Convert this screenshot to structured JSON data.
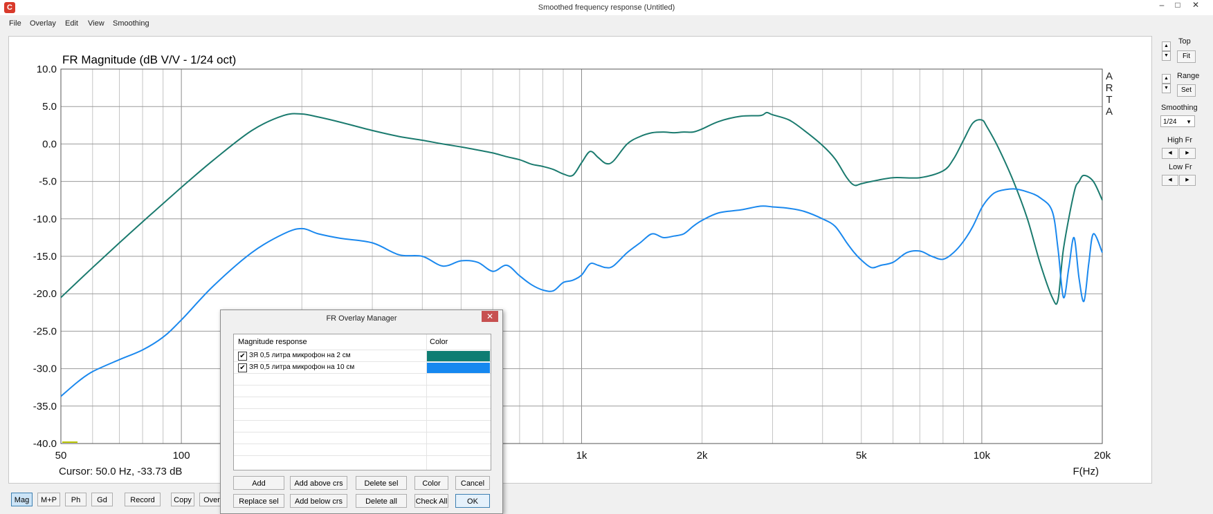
{
  "window": {
    "title": "Smoothed frequency response (Untitled)",
    "icon_name": "arta-app-icon",
    "controls": [
      "–",
      "□",
      "✕"
    ]
  },
  "menu": [
    "File",
    "Overlay",
    "Edit",
    "View",
    "Smoothing"
  ],
  "chart_data": {
    "type": "line",
    "title": "FR Magnitude (dB V/V - 1/24 oct)",
    "brand": [
      "A",
      "R",
      "T",
      "A"
    ],
    "xlabel": "F(Hz)",
    "x_scale": "log",
    "xlim": [
      50,
      20000
    ],
    "x_ticks": [
      50,
      100,
      1000,
      2000,
      5000,
      10000,
      20000
    ],
    "x_tick_labels": [
      "50",
      "100",
      "1k",
      "2k",
      "5k",
      "10k",
      "20k"
    ],
    "ylim": [
      -40,
      10
    ],
    "y_ticks": [
      10,
      5,
      0,
      -5,
      -10,
      -15,
      -20,
      -25,
      -30,
      -35,
      -40
    ],
    "y_tick_labels": [
      "10.0",
      "5.0",
      "0.0",
      "-5.0",
      "-10.0",
      "-15.0",
      "-20.0",
      "-25.0",
      "-30.0",
      "-35.0",
      "-40.0"
    ],
    "grid": true,
    "cursor_text": "Cursor: 50.0 Hz, -33.73 dB",
    "series": [
      {
        "name": "ЗЯ 0,5 литра микрофон на 2 см",
        "color": "#1a7a6e",
        "x": [
          50,
          60,
          70,
          80,
          100,
          120,
          150,
          180,
          200,
          220,
          250,
          300,
          350,
          400,
          450,
          500,
          550,
          600,
          650,
          700,
          750,
          800,
          850,
          900,
          950,
          1000,
          1050,
          1100,
          1150,
          1200,
          1300,
          1400,
          1500,
          1600,
          1700,
          1800,
          1900,
          2000,
          2200,
          2500,
          2800,
          2900,
          3000,
          3300,
          3600,
          4000,
          4300,
          4600,
          4800,
          5000,
          5300,
          6000,
          7000,
          8000,
          8500,
          9000,
          9500,
          10000,
          10300,
          11000,
          12000,
          13000,
          14000,
          15000,
          15500,
          16000,
          17000,
          17500,
          18000,
          19000,
          20000
        ],
        "y": [
          -20.5,
          -16.5,
          -13.2,
          -10.4,
          -5.8,
          -2.2,
          1.8,
          3.8,
          4.0,
          3.6,
          2.9,
          1.8,
          1.0,
          0.5,
          0,
          -0.4,
          -0.8,
          -1.2,
          -1.7,
          -2.1,
          -2.7,
          -3.0,
          -3.4,
          -4.0,
          -4.2,
          -2.5,
          -1.0,
          -1.8,
          -2.6,
          -2.3,
          0,
          1.0,
          1.5,
          1.6,
          1.5,
          1.6,
          1.6,
          2.0,
          3.0,
          3.7,
          3.8,
          4.2,
          3.9,
          3.2,
          1.8,
          -0.2,
          -2.0,
          -4.5,
          -5.5,
          -5.3,
          -5.0,
          -4.5,
          -4.5,
          -3.6,
          -2.0,
          0.5,
          2.8,
          3.2,
          2.3,
          -0.5,
          -5.0,
          -10.0,
          -16.0,
          -20.5,
          -20.8,
          -14.0,
          -6.5,
          -5.0,
          -4.2,
          -5.0,
          -7.5
        ]
      },
      {
        "name": "ЗЯ 0,5 литра микрофон на 10 см",
        "color": "#1a88ee",
        "x": [
          50,
          55,
          60,
          70,
          80,
          90,
          100,
          120,
          150,
          180,
          200,
          220,
          250,
          300,
          350,
          400,
          450,
          500,
          550,
          600,
          650,
          700,
          750,
          800,
          850,
          900,
          950,
          1000,
          1050,
          1100,
          1150,
          1200,
          1300,
          1400,
          1500,
          1600,
          1700,
          1800,
          1900,
          2000,
          2200,
          2500,
          2800,
          3000,
          3300,
          3600,
          4000,
          4300,
          4600,
          4800,
          5000,
          5300,
          5600,
          6000,
          6500,
          7000,
          7500,
          8000,
          8500,
          9000,
          9500,
          10000,
          10500,
          11000,
          12000,
          13000,
          14000,
          15000,
          15500,
          16000,
          16500,
          17000,
          17500,
          18000,
          18500,
          19000,
          20000
        ],
        "y": [
          -33.7,
          -31.8,
          -30.4,
          -28.8,
          -27.5,
          -25.8,
          -23.5,
          -19.0,
          -14.5,
          -12.0,
          -11.3,
          -12.0,
          -12.6,
          -13.2,
          -14.8,
          -15.0,
          -16.3,
          -15.6,
          -15.8,
          -17.0,
          -16.2,
          -17.6,
          -18.8,
          -19.5,
          -19.6,
          -18.5,
          -18.2,
          -17.5,
          -16.0,
          -16.2,
          -16.5,
          -16.3,
          -14.5,
          -13.2,
          -12.0,
          -12.5,
          -12.3,
          -12.0,
          -11.0,
          -10.2,
          -9.2,
          -8.8,
          -8.3,
          -8.4,
          -8.6,
          -9.0,
          -10.0,
          -11.0,
          -13.2,
          -14.5,
          -15.5,
          -16.5,
          -16.2,
          -15.8,
          -14.5,
          -14.3,
          -15.0,
          -15.4,
          -14.5,
          -13.0,
          -11.0,
          -8.5,
          -7.0,
          -6.3,
          -6.0,
          -6.4,
          -7.2,
          -9.0,
          -14.0,
          -20.5,
          -16.5,
          -12.5,
          -18.0,
          -21.0,
          -16.0,
          -12.0,
          -14.5
        ]
      }
    ],
    "marker_color": "#b8c400"
  },
  "right_panel": {
    "top_label": "Top",
    "fit_button": "Fit",
    "range_label": "Range",
    "set_button": "Set",
    "smoothing_label": "Smoothing",
    "smoothing_value": "1/24",
    "high_fr_label": "High Fr",
    "low_fr_label": "Low Fr"
  },
  "bottom_buttons": [
    {
      "label": "Mag",
      "active": true
    },
    {
      "label": "M+P",
      "active": false
    },
    {
      "label": "Ph",
      "active": false
    },
    {
      "label": "Gd",
      "active": false
    },
    {
      "label": "Record",
      "active": false
    },
    {
      "label": "Copy",
      "active": false
    },
    {
      "label": "Over",
      "active": false
    }
  ],
  "dialog": {
    "title": "FR Overlay Manager",
    "close": "✕",
    "col_response": "Magnitude response",
    "col_color": "Color",
    "rows": [
      {
        "checked": true,
        "label": "ЗЯ 0,5 литра микрофон на 2 см",
        "color": "#0e7d73"
      },
      {
        "checked": true,
        "label": "ЗЯ 0,5 литра микрофон на 10 см",
        "color": "#1688f0"
      }
    ],
    "check_mark": "✔",
    "buttons_row1": [
      "Add",
      "Add above crs",
      "Delete sel",
      "Color",
      "Cancel"
    ],
    "buttons_row2": [
      "Replace sel",
      "Add below crs",
      "Delete all",
      "Check All",
      "OK"
    ]
  }
}
